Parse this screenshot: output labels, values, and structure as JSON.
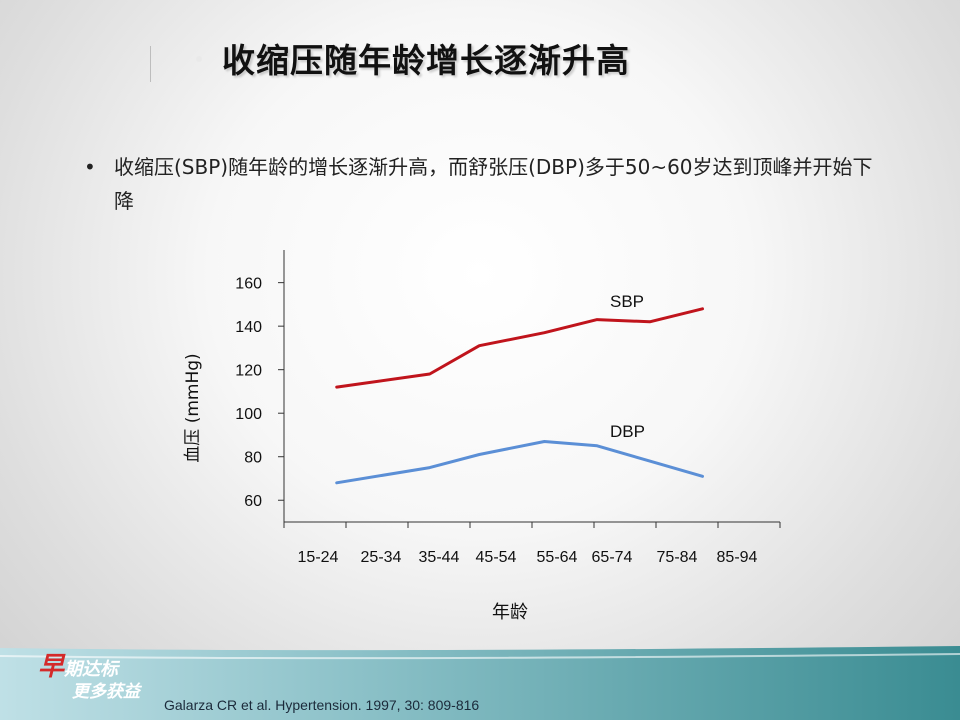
{
  "slide": {
    "title": "收缩压随年龄增长逐渐升高",
    "bullet_symbol": "•",
    "bullet_text": "收缩压(SBP)随年龄的增长逐渐升高，而舒张压(DBP)多于50~60岁达到顶峰并开始下降",
    "citation": "Galarza CR et al. Hypertension. 1997, 30: 809-816",
    "brand_first_char": "早",
    "brand_line1_rest": "期达标",
    "brand_line2": "更多获益"
  },
  "colors": {
    "sbp": "#c0141c",
    "dbp": "#5b8fd6",
    "axis": "#333333",
    "footer": "#3e8f96"
  },
  "chart_data": {
    "type": "line",
    "xlabel": "年龄",
    "ylabel": "血压 (mmHg)",
    "ylim": [
      50,
      175
    ],
    "yticks": [
      60,
      80,
      100,
      120,
      140,
      160
    ],
    "categories": [
      "15-24",
      "25-34",
      "35-44",
      "45-54",
      "55-64",
      "65-74",
      "75-84",
      "85-94"
    ],
    "series": [
      {
        "name": "SBP",
        "x": [
          0.85,
          2.35,
          3.15,
          4.2,
          5.05,
          5.9,
          6.75
        ],
        "values": [
          112,
          118,
          131,
          137,
          143,
          142,
          148
        ]
      },
      {
        "name": "DBP",
        "x": [
          0.85,
          2.35,
          3.15,
          4.2,
          5.05,
          5.9,
          6.75
        ],
        "values": [
          68,
          75,
          81,
          87,
          85,
          78,
          71
        ]
      }
    ],
    "grid": false,
    "legend": "inline labels near line ends"
  }
}
